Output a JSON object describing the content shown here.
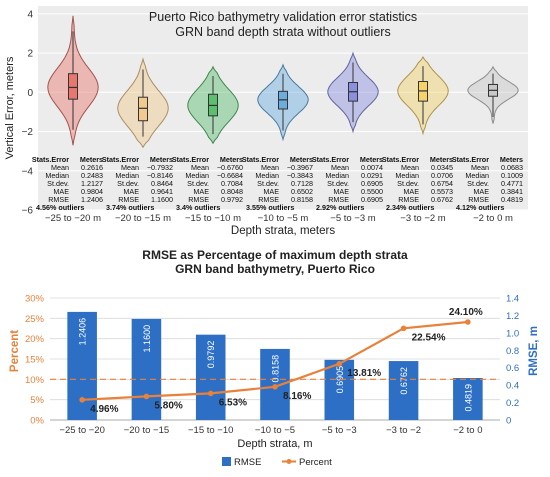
{
  "chart_data": [
    {
      "type": "violin",
      "title": "Puerto Rico bathymetry validation error statistics",
      "subtitle": "GRN band depth strata without outliers",
      "xlabel": "Depth strata, meters",
      "ylabel": "Vertical Error, meters",
      "ylim": [
        -6,
        4.4
      ],
      "yticks": [
        -6,
        -4,
        -2,
        0,
        2,
        4
      ],
      "ytick_labels": [
        "−6",
        "−4",
        "−2",
        "0",
        "2",
        "4"
      ],
      "grid": true,
      "categories": [
        "−25 to −20 m",
        "−20 to −15 m",
        "−15 to −10 m",
        "−10 to −5 m",
        "−5 to −3 m",
        "−3 to −2 m",
        "−2 to 0 m"
      ],
      "colors": [
        "#e8776f",
        "#f2c98e",
        "#5cbf6e",
        "#6aaee0",
        "#8a8fe0",
        "#f5d36a",
        "#c8c8c8"
      ],
      "violin_extent": [
        [
          -2.7,
          3.9
        ],
        [
          -2.8,
          1.7
        ],
        [
          -2.6,
          1.3
        ],
        [
          -2.4,
          1.4
        ],
        [
          -2.0,
          2.0
        ],
        [
          -2.1,
          1.8
        ],
        [
          -1.6,
          1.3
        ]
      ],
      "boxes": [
        [
          -0.35,
          0.95
        ],
        [
          -1.45,
          -0.25
        ],
        [
          -1.2,
          -0.1
        ],
        [
          -0.85,
          0.05
        ],
        [
          -0.45,
          0.5
        ],
        [
          -0.45,
          0.55
        ],
        [
          -0.2,
          0.4
        ]
      ],
      "stats_header": [
        "Stats.Error",
        "Meters"
      ],
      "stats_rows": [
        "Mean",
        "Median",
        "St.dev.",
        "MAE",
        "RMSE"
      ],
      "stats": [
        [
          "0.2616",
          "0.2483",
          "1.2127",
          "0.9804",
          "1.2406"
        ],
        [
          "−0.7932",
          "−0.8146",
          "0.8464",
          "0.9641",
          "1.1600"
        ],
        [
          "−0.6760",
          "−0.6684",
          "0.7084",
          "0.8048",
          "0.9792"
        ],
        [
          "−0.3967",
          "−0.3843",
          "0.7128",
          "0.6502",
          "0.8158"
        ],
        [
          "0.0074",
          "0.0291",
          "0.6905",
          "0.5500",
          "0.6905"
        ],
        [
          "0.0345",
          "0.0706",
          "0.6754",
          "0.5573",
          "0.6762"
        ],
        [
          "0.0683",
          "0.1009",
          "0.4771",
          "0.3841",
          "0.4819"
        ]
      ],
      "outliers": [
        "4.56% outliers",
        "3.74% outliers",
        "3.4% outliers",
        "3.55% outliers",
        "2.92% outliers",
        "2.34% outliers",
        "4.12% outliers"
      ]
    },
    {
      "type": "bar",
      "title": "RMSE as Percentage of maximum depth strata",
      "subtitle": "GRN band bathymetry, Puerto Rico",
      "xlabel": "Depth strata, m",
      "categories": [
        "−25 to −20",
        "−20 to −15",
        "−15 to −10",
        "−10 to −5",
        "−5 to −3",
        "−3 to −2",
        "−2 to 0"
      ],
      "series": [
        {
          "name": "RMSE",
          "axis": "right",
          "color": "#2e6fc6",
          "values": [
            1.2406,
            1.16,
            0.9792,
            0.8158,
            0.6905,
            0.6762,
            0.4819
          ],
          "labels": [
            "1.2406",
            "1.1600",
            "0.9792",
            "0.8158",
            "0.6905",
            "0.6762",
            "0.4819"
          ]
        },
        {
          "name": "Percent",
          "axis": "left",
          "type": "line",
          "color": "#e8813a",
          "values": [
            4.96,
            5.8,
            6.53,
            8.16,
            13.81,
            22.54,
            24.1
          ],
          "labels": [
            "4.96%",
            "5.80%",
            "6.53%",
            "8.16%",
            "13.81%",
            "22.54%",
            "24.10%"
          ]
        }
      ],
      "ylabel_left": "Percent",
      "ylabel_right": "RMSE, m",
      "ylim_left": [
        0,
        30
      ],
      "ylim_right": [
        0,
        1.4
      ],
      "yticks_left": [
        "0%",
        "5%",
        "10%",
        "15%",
        "20%",
        "25%",
        "30%"
      ],
      "yticks_right": [
        "0",
        "0.2",
        "0.4",
        "0.6",
        "0.8",
        "1.0",
        "1.2",
        "1.4"
      ],
      "reference_line_percent": 10,
      "legend": [
        "RMSE",
        "Percent"
      ],
      "legend_position": "bottom"
    }
  ]
}
